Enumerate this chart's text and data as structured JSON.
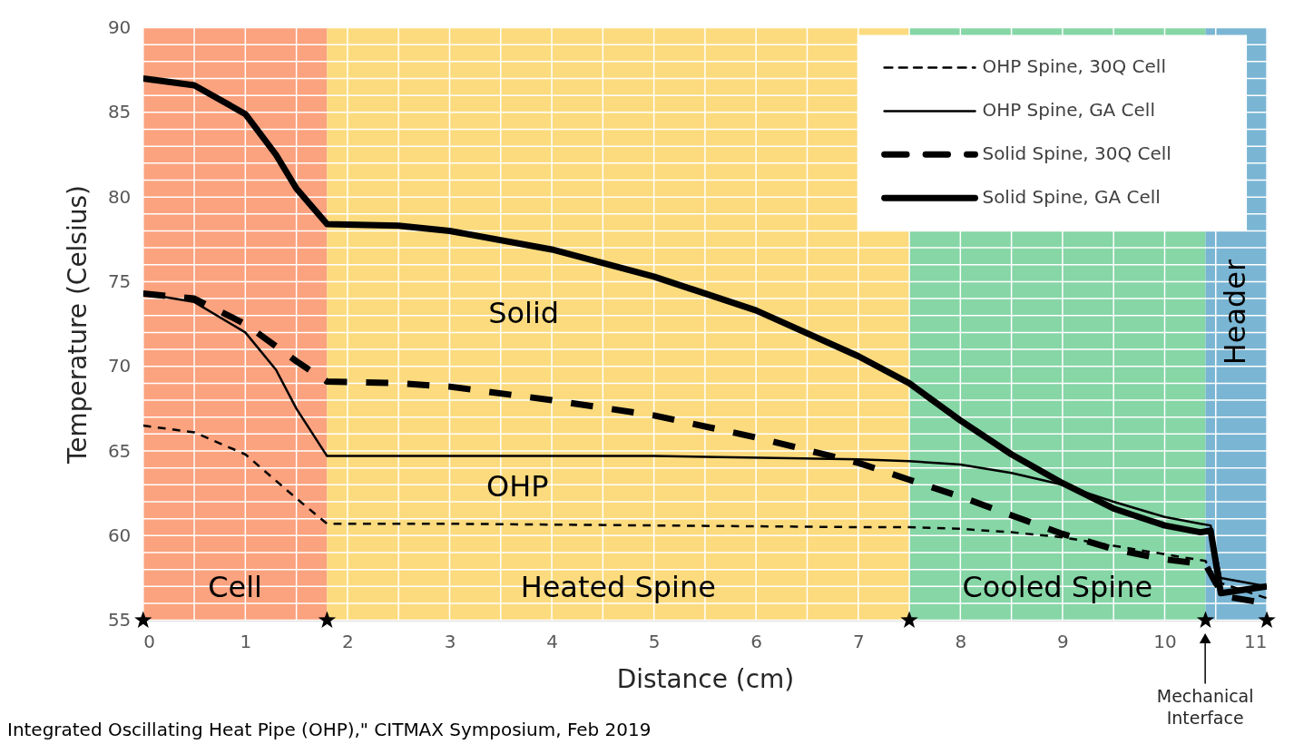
{
  "chart_data": {
    "type": "line",
    "xlabel": "Distance (cm)",
    "ylabel": "Temperature (Celsius)",
    "xlim": [
      0,
      11
    ],
    "ylim": [
      55,
      90
    ],
    "xticks": [
      0,
      {
        "value": 0.5,
        "label": null
      },
      1,
      {
        "value": 1.5,
        "label": null
      },
      2,
      {
        "value": 2.5,
        "label": null
      },
      3,
      {
        "value": 3.5,
        "label": null
      },
      4,
      {
        "value": 4.5,
        "label": null
      },
      5,
      {
        "value": 5.5,
        "label": null
      },
      6,
      {
        "value": 6.5,
        "label": null
      },
      7,
      {
        "value": 7.5,
        "label": null
      },
      8,
      {
        "value": 8.5,
        "label": null
      },
      9,
      {
        "value": 9.5,
        "label": null
      },
      10,
      {
        "value": 10.5,
        "label": null
      },
      11
    ],
    "yticks": [
      55,
      {
        "value": 56,
        "label": null
      },
      {
        "value": 57,
        "label": null
      },
      {
        "value": 58,
        "label": null
      },
      {
        "value": 59,
        "label": null
      },
      60,
      {
        "value": 61,
        "label": null
      },
      {
        "value": 62,
        "label": null
      },
      {
        "value": 63,
        "label": null
      },
      {
        "value": 64,
        "label": null
      },
      65,
      {
        "value": 66,
        "label": null
      },
      {
        "value": 67,
        "label": null
      },
      {
        "value": 68,
        "label": null
      },
      {
        "value": 69,
        "label": null
      },
      70,
      {
        "value": 71,
        "label": null
      },
      {
        "value": 72,
        "label": null
      },
      {
        "value": 73,
        "label": null
      },
      {
        "value": 74,
        "label": null
      },
      75,
      {
        "value": 76,
        "label": null
      },
      {
        "value": 77,
        "label": null
      },
      {
        "value": 78,
        "label": null
      },
      {
        "value": 79,
        "label": null
      },
      80,
      {
        "value": 81,
        "label": null
      },
      {
        "value": 82,
        "label": null
      },
      {
        "value": 83,
        "label": null
      },
      {
        "value": 84,
        "label": null
      },
      85,
      {
        "value": 86,
        "label": null
      },
      {
        "value": 87,
        "label": null
      },
      {
        "value": 88,
        "label": null
      },
      {
        "value": 89,
        "label": null
      },
      90
    ],
    "grid": true,
    "legend": "top right",
    "series": [
      {
        "name": "OHP Spine, 30Q Cell",
        "color": "#000000",
        "line_style": "dashed",
        "x": [
          0,
          0.5,
          1,
          1.5,
          1.8,
          3,
          5,
          7,
          7.5,
          8,
          8.5,
          9,
          9.5,
          10,
          10.4,
          10.5,
          11
        ],
        "values": [
          66.5,
          66.1,
          64.8,
          62.2,
          60.7,
          60.7,
          60.6,
          60.5,
          60.5,
          60.4,
          60.2,
          59.9,
          59.4,
          58.9,
          58.5,
          57.3,
          56.3
        ]
      },
      {
        "name": "OHP Spine, GA Cell",
        "color": "#000000",
        "line_style": "solid",
        "x": [
          0,
          0.5,
          1,
          1.3,
          1.5,
          1.8,
          3,
          5,
          7,
          7.5,
          8,
          8.5,
          9,
          9.5,
          10,
          10.35,
          10.45,
          10.55,
          11
        ],
        "values": [
          74.3,
          73.8,
          72,
          69.8,
          67.5,
          64.7,
          64.7,
          64.7,
          64.5,
          64.4,
          64.2,
          63.7,
          63,
          62,
          61.1,
          60.7,
          60.6,
          57.5,
          57
        ]
      },
      {
        "name": "Solid Spine, 30Q Cell",
        "color": "#000000",
        "line_style": "dashed",
        "x": [
          0,
          0.5,
          1,
          1.5,
          1.8,
          2.5,
          3,
          4,
          5,
          6,
          7,
          7.5,
          8,
          8.5,
          9,
          9.5,
          10,
          10.4,
          10.5,
          10.6,
          11
        ],
        "values": [
          74.3,
          74,
          72.5,
          70.3,
          69.1,
          69,
          68.8,
          68,
          67.1,
          65.8,
          64.3,
          63.3,
          62.3,
          61.2,
          60.1,
          59.2,
          58.6,
          58.3,
          57.2,
          56.4,
          56
        ]
      },
      {
        "name": "Solid Spine, GA Cell",
        "color": "#000000",
        "line_style": "solid",
        "x": [
          0,
          0.5,
          1,
          1.3,
          1.5,
          1.8,
          2.5,
          3,
          4,
          5,
          6,
          7,
          7.5,
          8,
          8.5,
          9,
          9.5,
          10,
          10.35,
          10.45,
          10.55,
          11
        ],
        "values": [
          87,
          86.6,
          84.9,
          82.5,
          80.5,
          78.4,
          78.3,
          78,
          76.9,
          75.3,
          73.3,
          70.6,
          69,
          66.8,
          64.8,
          63.1,
          61.6,
          60.6,
          60.2,
          60.3,
          56.6,
          57
        ]
      },
      {
        "type": "scatter",
        "marker": "star",
        "color": "#000000",
        "x": [
          0,
          1.8,
          7.5,
          10.4,
          11
        ],
        "values": [
          55,
          55,
          55,
          55,
          55
        ]
      }
    ],
    "bands": [
      {
        "axis": "x",
        "from": 0,
        "to": 1.8,
        "label": "Cell",
        "color": "#fba27e"
      },
      {
        "axis": "x",
        "from": 1.8,
        "to": 7.5,
        "label": "Heated Spine",
        "color": "#fcdb7e"
      },
      {
        "axis": "x",
        "from": 7.5,
        "to": 10.4,
        "label": "Cooled Spine",
        "color": "#86d6a6"
      },
      {
        "axis": "x",
        "from": 10.4,
        "to": 11,
        "label": "Header",
        "color": "#7ab5d4"
      }
    ],
    "annotations": [
      "Solid",
      "OHP",
      "Mechanical Interface",
      "Integrated Oscillating Heat Pipe (OHP),\" CITMAX Symposium, Feb 2019"
    ]
  }
}
